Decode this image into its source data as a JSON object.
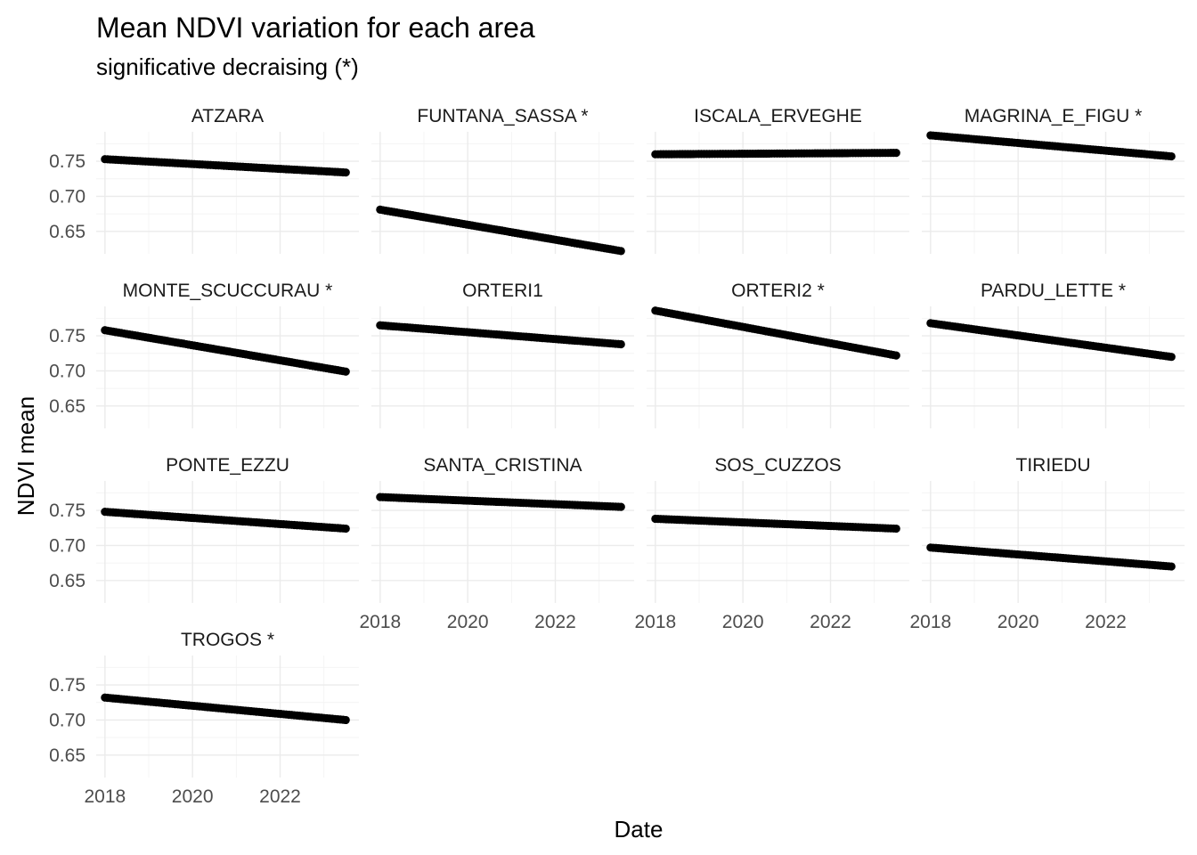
{
  "chart_data": {
    "type": "scatter",
    "title": "Mean NDVI variation for each area",
    "subtitle": "significative decraising (*)",
    "xlabel": "Date",
    "ylabel": "NDVI mean",
    "xlim": [
      2017.8,
      2023.8
    ],
    "ylim": [
      0.618,
      0.792
    ],
    "x_ticks": [
      2018,
      2020,
      2022
    ],
    "x_tick_labels": [
      "2018",
      "2020",
      "2022"
    ],
    "y_ticks": [
      0.65,
      0.7,
      0.75
    ],
    "y_tick_labels": [
      "0.65",
      "0.70",
      "0.75"
    ],
    "grid": true,
    "facets": 4,
    "panels": [
      {
        "label": "ATZARA",
        "start": [
          2018.0,
          0.753
        ],
        "end": [
          2023.5,
          0.734
        ]
      },
      {
        "label": "FUNTANA_SASSA *",
        "start": [
          2018.0,
          0.681
        ],
        "end": [
          2023.5,
          0.622
        ]
      },
      {
        "label": "ISCALA_ERVEGHE",
        "start": [
          2018.0,
          0.76
        ],
        "end": [
          2023.5,
          0.762
        ]
      },
      {
        "label": "MAGRINA_E_FIGU *",
        "start": [
          2018.0,
          0.787
        ],
        "end": [
          2023.5,
          0.757
        ]
      },
      {
        "label": "MONTE_SCUCCURAU *",
        "start": [
          2018.0,
          0.758
        ],
        "end": [
          2023.5,
          0.699
        ]
      },
      {
        "label": "ORTERI1",
        "start": [
          2018.0,
          0.765
        ],
        "end": [
          2023.5,
          0.738
        ]
      },
      {
        "label": "ORTERI2 *",
        "start": [
          2018.0,
          0.786
        ],
        "end": [
          2023.5,
          0.722
        ]
      },
      {
        "label": "PARDU_LETTE *",
        "start": [
          2018.0,
          0.768
        ],
        "end": [
          2023.5,
          0.72
        ]
      },
      {
        "label": "PONTE_EZZU",
        "start": [
          2018.0,
          0.748
        ],
        "end": [
          2023.5,
          0.724
        ]
      },
      {
        "label": "SANTA_CRISTINA",
        "start": [
          2018.0,
          0.769
        ],
        "end": [
          2023.5,
          0.755
        ]
      },
      {
        "label": "SOS_CUZZOS",
        "start": [
          2018.0,
          0.738
        ],
        "end": [
          2023.5,
          0.724
        ]
      },
      {
        "label": "TIRIEDU",
        "start": [
          2018.0,
          0.697
        ],
        "end": [
          2023.5,
          0.67
        ]
      },
      {
        "label": "TROGOS *",
        "start": [
          2018.0,
          0.732
        ],
        "end": [
          2023.5,
          0.7
        ]
      }
    ],
    "point_color": "#000000"
  }
}
